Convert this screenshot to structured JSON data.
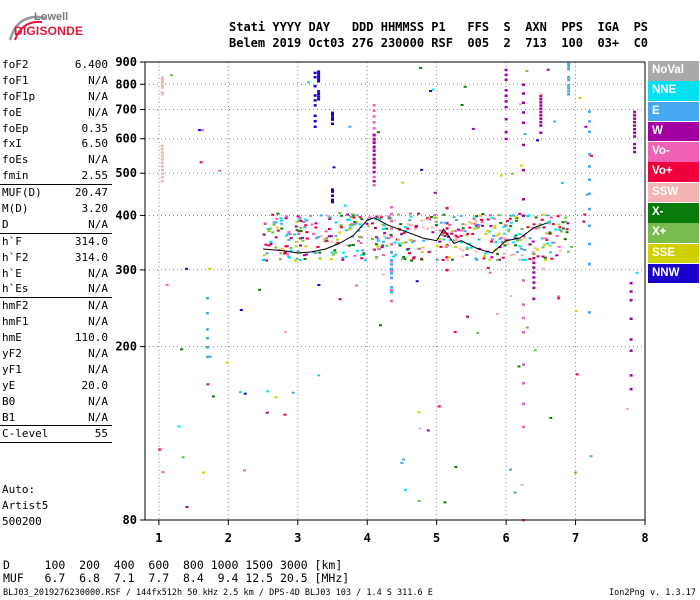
{
  "logo": {
    "top": "Lowell",
    "bottom": "DIGISONDE"
  },
  "header": {
    "line1": "Stati YYYY DAY   DDD HHMMSS P1   FFS  S  AXN  PPS  IGA  PS",
    "line2": "Belem 2019 Oct03 276 230000 RSF  005  2  713  100  03+  C0"
  },
  "params": [
    {
      "label": "foF2",
      "value": "6.400"
    },
    {
      "label": "foF1",
      "value": "N/A"
    },
    {
      "label": "foF1p",
      "value": "N/A"
    },
    {
      "label": "foE",
      "value": "N/A"
    },
    {
      "label": "foEp",
      "value": "0.35"
    },
    {
      "label": "fxI",
      "value": "6.50"
    },
    {
      "label": "foEs",
      "value": "N/A"
    },
    {
      "label": "fmin",
      "value": "2.55"
    },
    {
      "label": "MUF(D)",
      "value": "20.47",
      "sep": true
    },
    {
      "label": "M(D)",
      "value": "3.20"
    },
    {
      "label": "D",
      "value": "N/A"
    },
    {
      "label": "h`F",
      "value": "314.0",
      "sep": true
    },
    {
      "label": "h`F2",
      "value": "314.0"
    },
    {
      "label": "h`E",
      "value": "N/A"
    },
    {
      "label": "h`Es",
      "value": "N/A"
    },
    {
      "label": "hmF2",
      "value": "N/A",
      "sep": true
    },
    {
      "label": "hmF1",
      "value": "N/A"
    },
    {
      "label": "hmE",
      "value": "110.0"
    },
    {
      "label": "yF2",
      "value": "N/A"
    },
    {
      "label": "yF1",
      "value": "N/A"
    },
    {
      "label": "yE",
      "value": "20.0"
    },
    {
      "label": "B0",
      "value": "N/A"
    },
    {
      "label": "B1",
      "value": "N/A"
    },
    {
      "label": "C-level",
      "value": "55",
      "sep": true
    }
  ],
  "autoscale": {
    "line1": "Auto:",
    "line2": "Artist5",
    "line3": "500200"
  },
  "legend": [
    {
      "label": "NoVal",
      "color": "#a9a9a9"
    },
    {
      "label": "NNE",
      "color": "#00e0f0"
    },
    {
      "label": "E",
      "color": "#46a8f0"
    },
    {
      "label": "W",
      "color": "#a300a3"
    },
    {
      "label": "Vo-",
      "color": "#f060b4"
    },
    {
      "label": "Vo+",
      "color": "#f0003a"
    },
    {
      "label": "SSW",
      "color": "#f4b4b4"
    },
    {
      "label": "X-",
      "color": "#0a7a0a"
    },
    {
      "label": "X+",
      "color": "#78bc50"
    },
    {
      "label": "SSE",
      "color": "#d0d000"
    },
    {
      "label": "NNW",
      "color": "#1a00cc"
    }
  ],
  "chart_data": {
    "type": "scatter",
    "title": "",
    "xlabel": "",
    "ylabel": "",
    "xlim": [
      0.8,
      8
    ],
    "ylim": [
      80,
      900
    ],
    "yscale": "log",
    "x_ticks": [
      1,
      2,
      3,
      4,
      5,
      6,
      7,
      8
    ],
    "y_ticks": [
      80,
      200,
      300,
      400,
      500,
      600,
      700,
      800,
      900
    ],
    "grid": "dotted",
    "trace": {
      "name": "",
      "x": [
        2.5,
        2.8,
        3.0,
        3.2,
        3.4,
        3.6,
        3.8,
        4.0,
        4.1,
        4.3,
        4.5,
        4.8,
        5.0,
        5.1,
        5.25,
        5.35,
        5.6,
        5.8,
        6.0,
        6.2,
        6.4,
        6.6
      ],
      "y": [
        335,
        332,
        328,
        330,
        335,
        345,
        360,
        390,
        395,
        380,
        370,
        355,
        350,
        372,
        345,
        350,
        335,
        328,
        350,
        355,
        375,
        385
      ]
    },
    "echo_columns": [
      {
        "x": 3.25,
        "y1": 640,
        "y2": 880,
        "color": "#1a00cc"
      },
      {
        "x": 3.3,
        "y1": 740,
        "y2": 860,
        "color": "#1a00cc"
      },
      {
        "x": 3.5,
        "y1": 650,
        "y2": 690,
        "color": "#1a00cc"
      },
      {
        "x": 3.5,
        "y1": 430,
        "y2": 470,
        "color": "#1a00cc"
      },
      {
        "x": 4.1,
        "y1": 470,
        "y2": 730,
        "color": "#f060b4"
      },
      {
        "x": 4.1,
        "y1": 480,
        "y2": 620,
        "color": "#a300a3"
      },
      {
        "x": 4.35,
        "y1": 240,
        "y2": 420,
        "color": "#f060b4"
      },
      {
        "x": 4.35,
        "y1": 260,
        "y2": 330,
        "color": "#46a8f0"
      },
      {
        "x": 6.25,
        "y1": 80,
        "y2": 290,
        "color": "#f060b4"
      },
      {
        "x": 6.25,
        "y1": 400,
        "y2": 880,
        "color": "#a300a3"
      },
      {
        "x": 6.4,
        "y1": 250,
        "y2": 330,
        "color": "#a300a3"
      },
      {
        "x": 6.5,
        "y1": 620,
        "y2": 760,
        "color": "#a300a3"
      },
      {
        "x": 6.9,
        "y1": 760,
        "y2": 900,
        "color": "#46a8f0"
      },
      {
        "x": 7.2,
        "y1": 240,
        "y2": 700,
        "color": "#46a8f0"
      },
      {
        "x": 7.8,
        "y1": 160,
        "y2": 300,
        "color": "#a300a3"
      },
      {
        "x": 7.85,
        "y1": 560,
        "y2": 700,
        "color": "#a300a3"
      },
      {
        "x": 1.05,
        "y1": 470,
        "y2": 580,
        "color": "#f4b4b4"
      },
      {
        "x": 1.05,
        "y1": 760,
        "y2": 830,
        "color": "#f4b4b4"
      },
      {
        "x": 1.7,
        "y1": 170,
        "y2": 280,
        "color": "#46a8f0"
      },
      {
        "x": 6.0,
        "y1": 600,
        "y2": 880,
        "color": "#a300a3"
      },
      {
        "x": 5.15,
        "y1": 300,
        "y2": 420,
        "color": "#f0003a"
      }
    ],
    "echo_cluster": {
      "x1": 2.5,
      "x2": 6.9,
      "y1": 315,
      "y2": 405
    }
  },
  "bottom_table": {
    "d_row": "D     100  200  400  600  800 1000 1500 3000 [km]",
    "muf_row": "MUF   6.7  6.8  7.1  7.7  8.4  9.4 12.5 20.5 [MHz]"
  },
  "footer": "BLJ03_2019276230000.RSF / 144fx512h 50 kHz 2.5 km / DPS-4D BLJ03 103 / 1.4 S 311.6 E",
  "version": "Ion2Png v. 1.3.17"
}
